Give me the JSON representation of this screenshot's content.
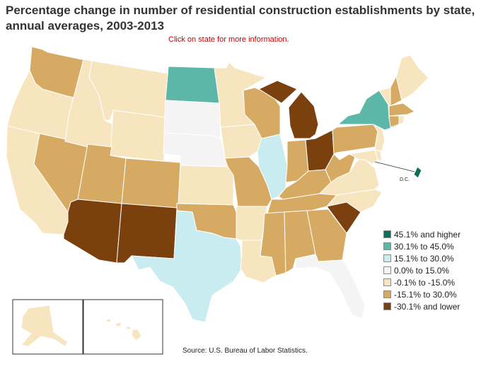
{
  "title_line1": "Percentage change in number of residential construction establishments by state,",
  "title_line2": "annual averages, 2003-2013",
  "subtitle": "Click on state for more information.",
  "source": "Source:  U.S. Bureau of Labor Statistics.",
  "dc_label": "D.C.",
  "colors": {
    "h45": "#0e6e5c",
    "h30": "#5cb7a9",
    "h15": "#c8ecef",
    "h0": "#f4f4f4",
    "l0": "#f7e5bf",
    "l15": "#d6aa62",
    "l30": "#7a410f",
    "stroke": "#ffffff"
  },
  "legend": [
    {
      "label": "45.1% and higher",
      "color": "#0e6e5c"
    },
    {
      "label": "30.1% to 45.0%",
      "color": "#5cb7a9"
    },
    {
      "label": "15.1% to 30.0%",
      "color": "#c8ecef"
    },
    {
      "label": "0.0% to 15.0%",
      "color": "#f4f4f4"
    },
    {
      "label": "-0.1% to -15.0%",
      "color": "#f7e5bf"
    },
    {
      "label": "-15.1% to 30.0%",
      "color": "#d6aa62"
    },
    {
      "label": "-30.1% and lower",
      "color": "#7a410f"
    }
  ],
  "states": {
    "WA": "l15",
    "OR": "l0",
    "CA": "l0",
    "NV": "l15",
    "ID": "l0",
    "MT": "l0",
    "WY": "l0",
    "UT": "l15",
    "AZ": "l30",
    "CO": "l15",
    "NM": "l30",
    "ND": "h30",
    "SD": "h0",
    "NE": "h0",
    "KS": "l0",
    "OK": "l15",
    "TX": "h15",
    "MN": "l0",
    "IA": "l0",
    "MO": "l15",
    "AR": "l0",
    "LA": "l0",
    "WI": "l15",
    "IL": "h15",
    "MI": "l30",
    "IN": "l15",
    "OH": "l30",
    "KY": "l15",
    "TN": "l15",
    "MS": "l15",
    "AL": "l15",
    "GA": "l15",
    "FL": "h0",
    "SC": "l30",
    "NC": "l0",
    "VA": "l0",
    "WV": "l15",
    "PA": "l15",
    "NY": "h30",
    "NJ": "l0",
    "DE": "l0",
    "MD": "l0",
    "CT": "l15",
    "RI": "l0",
    "MA": "l15",
    "VT": "l0",
    "NH": "l15",
    "ME": "l0",
    "DC": "h45",
    "AK": "l0",
    "HI": "l0"
  }
}
